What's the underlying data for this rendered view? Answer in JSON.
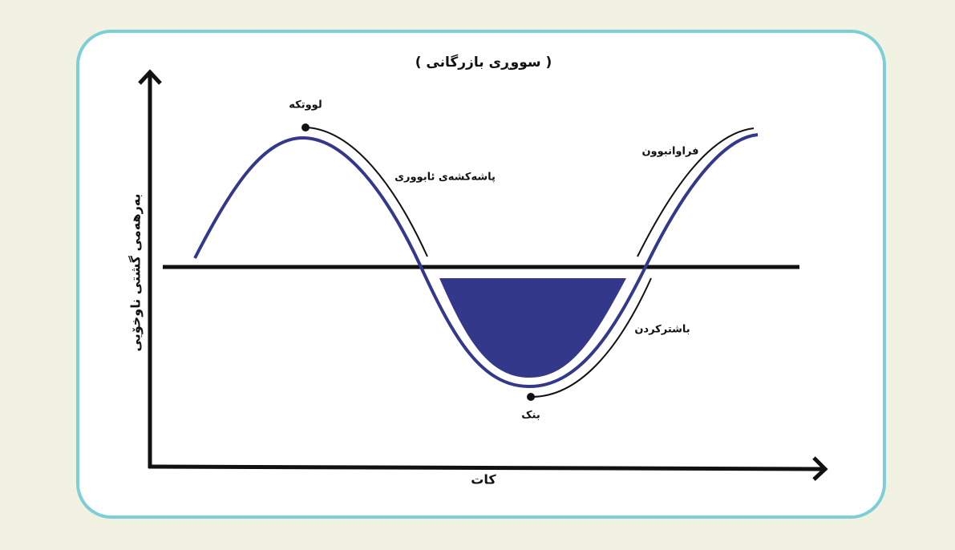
{
  "title": "( سووڕی بازرگانی )",
  "y_axis_label": "بەرهەمی گشتی ناوخۆیی",
  "x_axis_label": "کات",
  "labels": {
    "peak": "لووتکە",
    "contraction": "پاشەکشەی ئابووری",
    "expansion": "فراوانبوون",
    "recovery": "باشترکردن",
    "trough": "بنک"
  }
}
